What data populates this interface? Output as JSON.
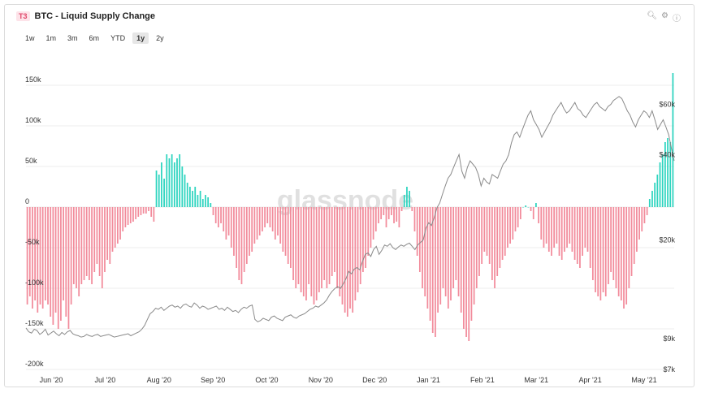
{
  "header": {
    "badge": "T3",
    "title": "BTC - Liquid Supply Change"
  },
  "icons": [
    "zoom-icon",
    "gear-icon",
    "info-icon"
  ],
  "ranges": [
    {
      "label": "1w",
      "active": false
    },
    {
      "label": "1m",
      "active": false
    },
    {
      "label": "3m",
      "active": false
    },
    {
      "label": "6m",
      "active": false
    },
    {
      "label": "YTD",
      "active": false
    },
    {
      "label": "1y",
      "active": true
    },
    {
      "label": "2y",
      "active": false
    }
  ],
  "watermark": "glassnode",
  "colors": {
    "positive": "#2dd4bf",
    "negative": "#f28b9b",
    "price_line": "#8a8a8a"
  },
  "chart_data": {
    "type": "bar",
    "left_axis": {
      "ylim": [
        -200000,
        170000
      ],
      "ticks": [
        {
          "value": 150000,
          "label": "150k"
        },
        {
          "value": 100000,
          "label": "100k"
        },
        {
          "value": 50000,
          "label": "50k"
        },
        {
          "value": 0,
          "label": "0"
        },
        {
          "value": -50000,
          "label": "-50k"
        },
        {
          "value": -100000,
          "label": "-100k"
        },
        {
          "value": -150000,
          "label": "-150k"
        },
        {
          "value": -200000,
          "label": "-200k"
        }
      ]
    },
    "right_axis": {
      "scale": "log",
      "ylim": [
        7000,
        80000
      ],
      "ticks": [
        {
          "value": 60000,
          "label": "$60k"
        },
        {
          "value": 40000,
          "label": "$40k"
        },
        {
          "value": 20000,
          "label": "$20k"
        },
        {
          "value": 9000,
          "label": "$9k"
        },
        {
          "value": 7000,
          "label": "$7k"
        }
      ]
    },
    "x_ticks": [
      "Jun '20",
      "Jul '20",
      "Aug '20",
      "Sep '20",
      "Oct '20",
      "Nov '20",
      "Dec '20",
      "Jan '21",
      "Feb '21",
      "Mar '21",
      "Apr '21",
      "May '21"
    ],
    "series": [
      {
        "role": "bars",
        "values": [
          -120000,
          -110000,
          -125000,
          -115000,
          -130000,
          -120000,
          -125000,
          -115000,
          -120000,
          -135000,
          -145000,
          -130000,
          -150000,
          -140000,
          -115000,
          -135000,
          -150000,
          -120000,
          -95000,
          -100000,
          -110000,
          -95000,
          -90000,
          -85000,
          -90000,
          -95000,
          -80000,
          -70000,
          -85000,
          -100000,
          -80000,
          -65000,
          -70000,
          -55000,
          -50000,
          -45000,
          -40000,
          -30000,
          -25000,
          -22000,
          -20000,
          -18000,
          -15000,
          -12000,
          -10000,
          -8000,
          -8000,
          -5000,
          -12000,
          -18000,
          45000,
          40000,
          55000,
          35000,
          65000,
          60000,
          65000,
          55000,
          60000,
          65000,
          50000,
          40000,
          30000,
          25000,
          20000,
          25000,
          15000,
          20000,
          10000,
          15000,
          12000,
          5000,
          -10000,
          -20000,
          -25000,
          -20000,
          -30000,
          -40000,
          -35000,
          -50000,
          -60000,
          -75000,
          -90000,
          -95000,
          -80000,
          -70000,
          -60000,
          -55000,
          -45000,
          -40000,
          -35000,
          -30000,
          -25000,
          -20000,
          -25000,
          -30000,
          -40000,
          -35000,
          -45000,
          -55000,
          -60000,
          -70000,
          -75000,
          -90000,
          -100000,
          -95000,
          -105000,
          -110000,
          -115000,
          -95000,
          -110000,
          -120000,
          -115000,
          -105000,
          -100000,
          -90000,
          -100000,
          -95000,
          -85000,
          -80000,
          -100000,
          -110000,
          -120000,
          -130000,
          -135000,
          -125000,
          -130000,
          -115000,
          -105000,
          -95000,
          -80000,
          -75000,
          -60000,
          -50000,
          -40000,
          -30000,
          -20000,
          -15000,
          -10000,
          -25000,
          -15000,
          -10000,
          -20000,
          -18000,
          -25000,
          -5000,
          15000,
          25000,
          20000,
          -5000,
          -30000,
          -60000,
          -80000,
          -100000,
          -110000,
          -125000,
          -140000,
          -155000,
          -160000,
          -130000,
          -120000,
          -100000,
          -110000,
          -125000,
          -115000,
          -100000,
          -90000,
          -110000,
          -130000,
          -150000,
          -160000,
          -165000,
          -140000,
          -120000,
          -100000,
          -85000,
          -70000,
          -55000,
          -60000,
          -70000,
          -90000,
          -100000,
          -85000,
          -75000,
          -65000,
          -60000,
          -50000,
          -45000,
          -40000,
          -30000,
          -25000,
          -15000,
          0,
          2000,
          0,
          -5000,
          -15000,
          5000,
          -20000,
          -40000,
          -50000,
          -45000,
          -55000,
          -60000,
          -50000,
          -45000,
          -60000,
          -65000,
          -55000,
          -50000,
          -45000,
          -55000,
          -65000,
          -70000,
          -75000,
          -60000,
          -50000,
          -55000,
          -75000,
          -90000,
          -105000,
          -110000,
          -115000,
          -105000,
          -110000,
          -95000,
          -80000,
          -90000,
          -100000,
          -110000,
          -115000,
          -125000,
          -120000,
          -100000,
          -85000,
          -70000,
          -55000,
          -40000,
          -30000,
          -20000,
          -10000,
          10000,
          20000,
          30000,
          40000,
          55000,
          65000,
          80000,
          85000,
          80000,
          165000
        ]
      },
      {
        "role": "price_line",
        "values": [
          9800,
          9500,
          9400,
          9700,
          9600,
          9300,
          9450,
          9700,
          9250,
          9400,
          9550,
          9350,
          9200,
          9450,
          9300,
          9500,
          9600,
          9350,
          9250,
          9200,
          9100,
          9150,
          9300,
          9200,
          9150,
          9250,
          9300,
          9150,
          9200,
          9250,
          9300,
          9200,
          9100,
          9150,
          9200,
          9250,
          9300,
          9350,
          9200,
          9300,
          9400,
          9500,
          9700,
          10000,
          10500,
          11000,
          11200,
          11500,
          11400,
          11600,
          11300,
          11500,
          11700,
          11800,
          11600,
          11700,
          11500,
          11800,
          11900,
          11700,
          11600,
          12000,
          11800,
          11500,
          11700,
          11600,
          11400,
          11500,
          11600,
          11700,
          11400,
          11500,
          11300,
          11600,
          11400,
          11200,
          11300,
          11100,
          11400,
          11600,
          11500,
          11700,
          11800,
          10500,
          10300,
          10400,
          10600,
          10500,
          10400,
          10700,
          10800,
          10600,
          10500,
          10400,
          10700,
          10800,
          10900,
          10700,
          10600,
          10800,
          10900,
          11000,
          11200,
          11400,
          11500,
          11700,
          11600,
          11800,
          12000,
          12300,
          12800,
          13200,
          13500,
          13700,
          13500,
          14000,
          14600,
          15500,
          15200,
          15800,
          16000,
          15700,
          16800,
          17800,
          18000,
          17500,
          18500,
          19000,
          17800,
          18400,
          19200,
          19000,
          19400,
          18800,
          18500,
          18900,
          19200,
          19000,
          19300,
          19500,
          19000,
          18500,
          19200,
          19600,
          20000,
          22000,
          23000,
          22500,
          24000,
          26000,
          27000,
          29000,
          31000,
          33000,
          34000,
          36000,
          38000,
          40000,
          35000,
          33000,
          36000,
          38000,
          37000,
          36000,
          34000,
          31000,
          33000,
          32000,
          31500,
          34000,
          33500,
          33000,
          35000,
          37000,
          38000,
          40000,
          44000,
          47000,
          48000,
          46000,
          49000,
          52000,
          55000,
          57000,
          53000,
          51000,
          49000,
          46000,
          48000,
          50000,
          52000,
          55000,
          57000,
          59000,
          61000,
          58000,
          56000,
          57000,
          59000,
          61000,
          58000,
          57000,
          55000,
          54000,
          56000,
          58000,
          60000,
          61000,
          59000,
          58000,
          57000,
          59000,
          60000,
          62000,
          63000,
          64000,
          63000,
          60000,
          57000,
          55000,
          52000,
          50000,
          53000,
          55000,
          57000,
          56000,
          54000,
          57000,
          53000,
          49000,
          51000,
          53000,
          50000,
          47000,
          42000,
          38000
        ]
      }
    ],
    "grid": true
  }
}
